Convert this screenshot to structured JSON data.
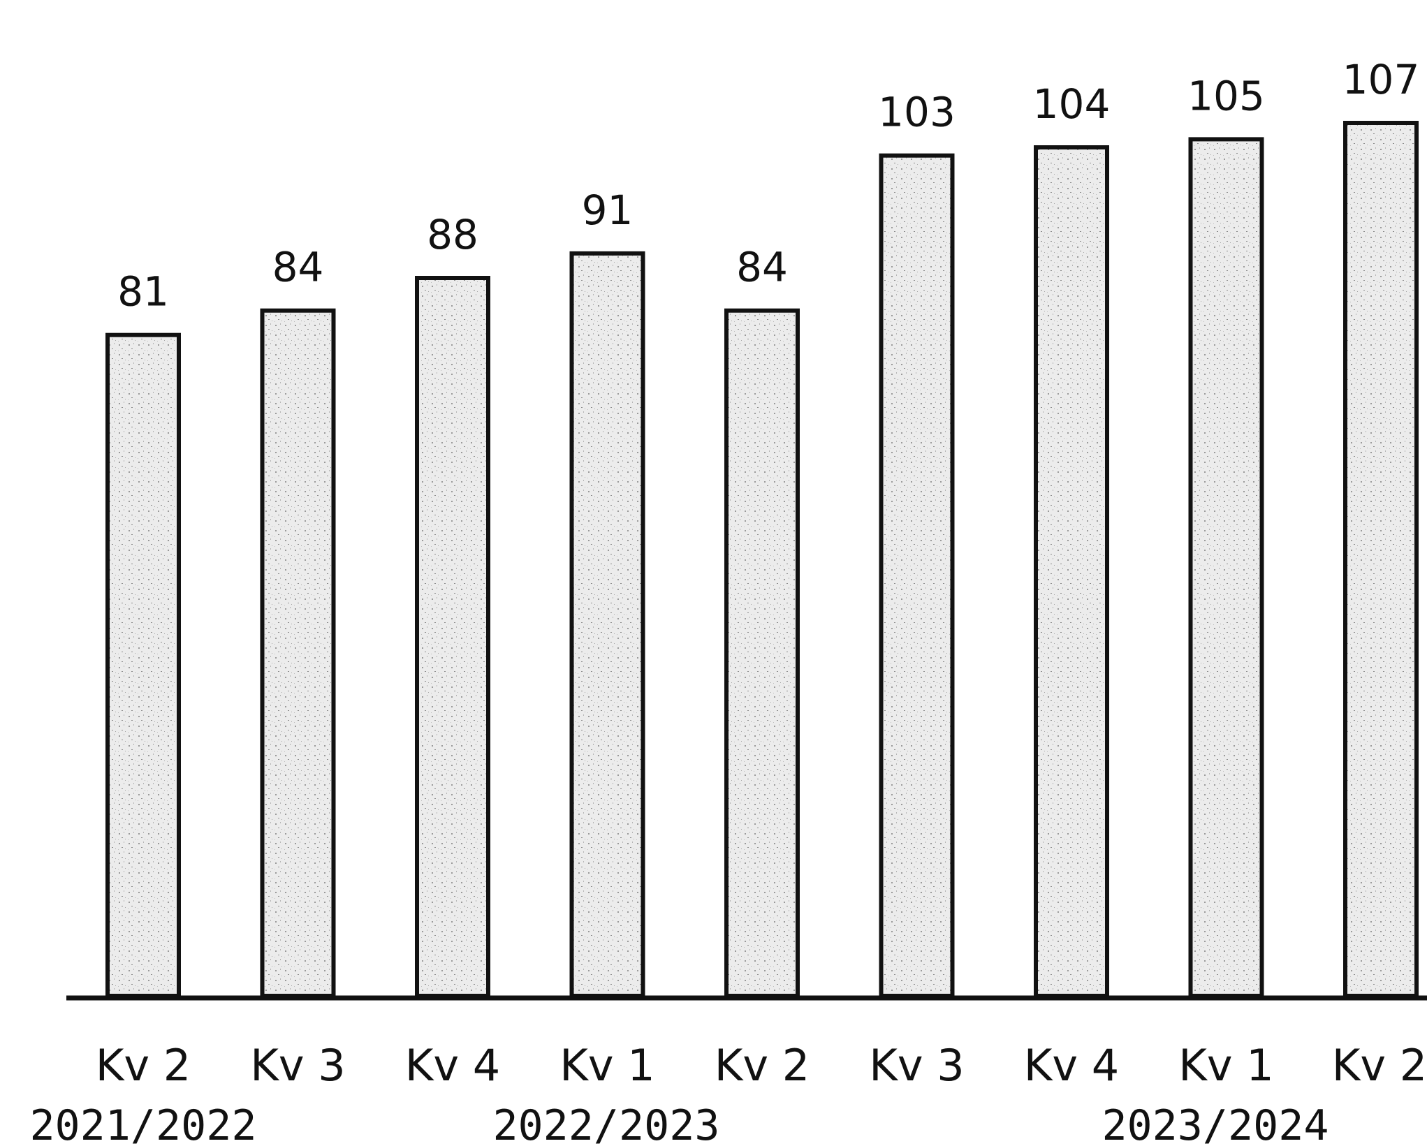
{
  "chart_data": {
    "type": "bar",
    "categories": [
      "Kv 2",
      "Kv 3",
      "Kv 4",
      "Kv 1",
      "Kv 2",
      "Kv 3",
      "Kv 4",
      "Kv 1",
      "Kv 2"
    ],
    "values": [
      81,
      84,
      88,
      91,
      84,
      103,
      104,
      105,
      107
    ],
    "data_labels": [
      "81",
      "84",
      "88",
      "91",
      "84",
      "103",
      "104",
      "105",
      "107"
    ],
    "groups": [
      "2021/2022",
      "2022/2023",
      "2023/2024"
    ],
    "title": "",
    "xlabel": "",
    "ylabel": "",
    "ylim": [
      0,
      107
    ],
    "grid": false,
    "legend": "none",
    "bar_fill": "#e2e2e2",
    "bar_stroke": "#111111",
    "axis_color": "#111111"
  }
}
